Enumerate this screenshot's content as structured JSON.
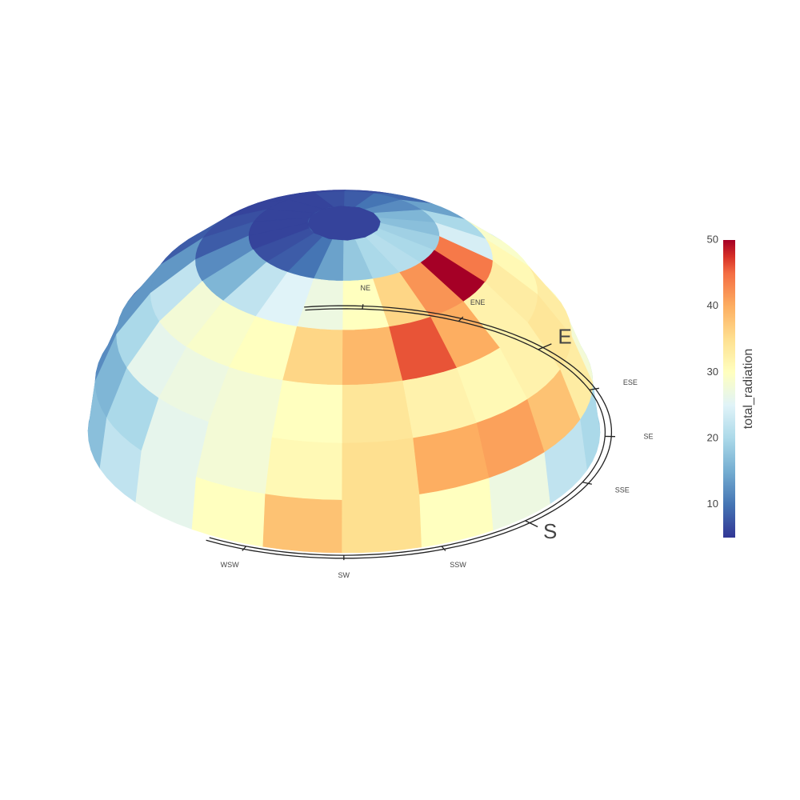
{
  "chart_data": {
    "type": "heatmap",
    "projection": "3D sky dome (hemisphere of patches)",
    "colorscale": "RdYlBu (reversed)",
    "colorbar": {
      "title": "total_radiation",
      "range": [
        5,
        50
      ],
      "ticks": [
        10,
        20,
        30,
        40,
        50
      ]
    },
    "compass_labels": [
      {
        "az": 0,
        "text": "NE",
        "major": false
      },
      {
        "az": 1,
        "text": "ENE",
        "major": false
      },
      {
        "az": 2,
        "text": "E",
        "major": true
      },
      {
        "az": 3,
        "text": "ESE",
        "major": false
      },
      {
        "az": 4,
        "text": "SE",
        "major": false
      },
      {
        "az": 5,
        "text": "SSE",
        "major": false
      },
      {
        "az": 6,
        "text": "S",
        "major": true
      },
      {
        "az": 7,
        "text": "SSW",
        "major": false
      },
      {
        "az": 8,
        "text": "SW",
        "major": false
      },
      {
        "az": 9,
        "text": "WSW",
        "major": false
      }
    ],
    "rings": [
      {
        "name": "ring-0",
        "values": [
          16,
          18,
          20,
          22,
          27,
          30,
          35,
          38,
          30,
          26,
          22,
          17,
          14,
          12,
          11,
          11,
          12,
          13,
          14,
          15
        ]
      },
      {
        "name": "ring-1",
        "values": [
          22,
          28,
          33,
          38,
          41,
          40,
          35,
          31,
          28,
          26,
          20,
          16,
          12,
          10,
          9,
          9,
          10,
          12,
          15,
          18
        ]
      },
      {
        "name": "ring-2",
        "values": [
          30,
          33,
          34,
          32,
          31,
          32,
          34,
          30,
          28,
          27,
          26,
          20,
          13,
          9,
          8,
          8,
          8,
          10,
          14,
          20
        ]
      },
      {
        "name": "ring-3",
        "values": [
          29,
          31,
          33,
          32,
          40,
          46,
          39,
          36,
          30,
          29,
          28,
          22,
          13,
          8,
          7,
          7,
          7,
          8,
          13,
          20
        ]
      },
      {
        "name": "ring-4",
        "values": [
          20,
          24,
          44,
          50,
          42,
          36,
          30,
          27,
          25,
          22,
          16,
          12,
          8,
          7,
          6,
          6,
          6,
          7,
          9,
          14
        ]
      },
      {
        "name": "ring-5",
        "values": [
          16,
          17,
          19,
          20,
          21,
          20,
          18,
          14,
          10,
          8,
          7,
          6,
          6,
          6,
          6,
          6,
          7,
          8,
          10,
          12
        ]
      }
    ],
    "cap": {
      "value": 6
    }
  }
}
